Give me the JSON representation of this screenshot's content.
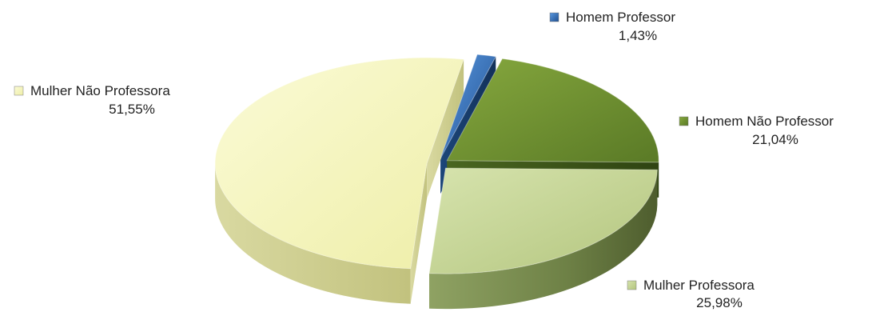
{
  "chart_data": {
    "type": "pie",
    "title": "",
    "slices": [
      {
        "label": "Homem Professor",
        "value": 1.43,
        "value_label": "1,43%",
        "color": "#2f6db8"
      },
      {
        "label": "Homem Não Professor",
        "value": 21.04,
        "value_label": "21,04%",
        "color": "#6f8f2f"
      },
      {
        "label": "Mulher Professora",
        "value": 25.98,
        "value_label": "25,98%",
        "color": "#c3d39b"
      },
      {
        "label": "Mulher Não Professora",
        "value": 51.55,
        "value_label": "51,55%",
        "color": "#f7f7c0"
      }
    ],
    "style": "3d-exploded",
    "legend": "inline-labels"
  }
}
